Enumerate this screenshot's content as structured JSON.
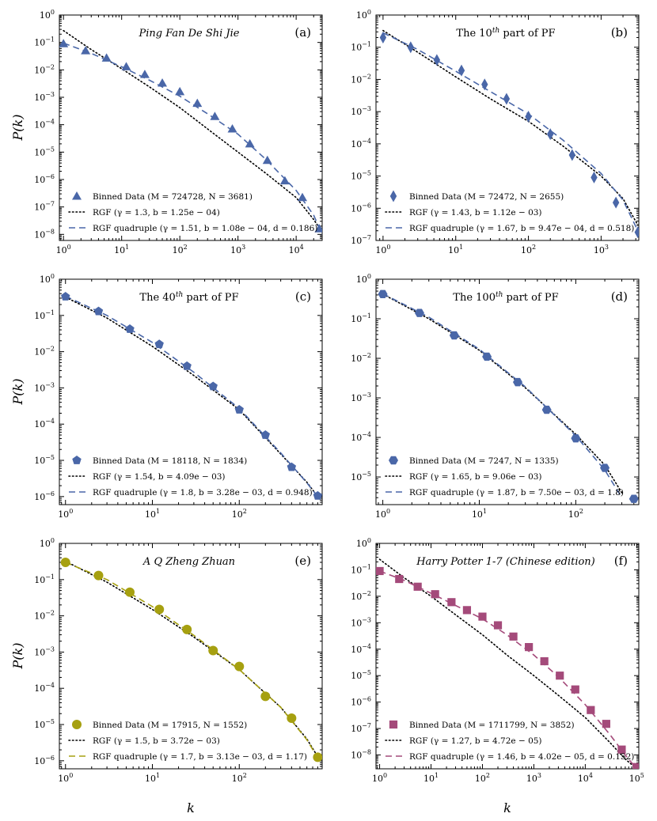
{
  "figure": {
    "x_axis_label": "k",
    "y_axis_label": "P(k)"
  },
  "colors": {
    "blue": "#4a67a8",
    "olive": "#a6a010",
    "magenta": "#a44a7a",
    "rgf_line": "#000000"
  },
  "chart_data": [
    {
      "id": "a",
      "type": "scatter",
      "scale": "log-log",
      "title": "Ping Fan De Shi Jie",
      "title_italic": true,
      "panel_letter": "(a)",
      "marker": "triangle",
      "color": "#4a67a8",
      "xlim": [
        0.85,
        28000
      ],
      "ylim": [
        6e-09,
        1
      ],
      "x_ticks": [
        1,
        10,
        100,
        1000,
        10000
      ],
      "x_tick_labels": [
        "10^0",
        "10^1",
        "10^2",
        "10^3",
        "10^4"
      ],
      "y_ticks": [
        1e-08,
        1e-07,
        1e-06,
        1e-05,
        0.0001,
        0.001,
        0.01,
        0.1,
        1
      ],
      "y_tick_labels": [
        "10^-8",
        "10^-7",
        "10^-6",
        "10^-5",
        "10^-4",
        "10^-3",
        "10^-2",
        "10^-1",
        "10^0"
      ],
      "show_ylabel": true,
      "show_xlabel": false,
      "data": {
        "x": [
          1,
          2.4,
          5.5,
          12,
          25,
          50,
          100,
          200,
          400,
          800,
          1600,
          3200,
          6400,
          12800,
          25000
        ],
        "y": [
          0.09,
          0.05,
          0.027,
          0.013,
          0.0068,
          0.0033,
          0.0016,
          0.0006,
          0.0002,
          7e-05,
          2e-05,
          5e-06,
          9e-07,
          2.2e-07,
          1.6e-08
        ]
      },
      "rgf": {
        "x": [
          1,
          3,
          10,
          30,
          100,
          300,
          1000,
          3000,
          10000,
          20000,
          28000
        ],
        "y": [
          0.27,
          0.055,
          0.011,
          0.0024,
          0.00042,
          7e-05,
          1e-05,
          1.7e-06,
          2.2e-07,
          3.5e-08,
          1.2e-08
        ]
      },
      "quad": {
        "x": [
          1,
          3,
          10,
          30,
          100,
          300,
          1000,
          3000,
          10000,
          20000,
          28000
        ],
        "y": [
          0.095,
          0.04,
          0.013,
          0.0042,
          0.0011,
          0.00025,
          4.5e-05,
          5.5e-06,
          4e-07,
          5e-08,
          1e-08
        ]
      },
      "legend": {
        "data_label": "Binned Data (M = 724728, N = 3681)",
        "rgf_label": "RGF (γ = 1.3, b = 1.25e − 04)",
        "quad_label": "RGF quadruple (γ = 1.51, b = 1.08e − 04, d = 0.186)"
      }
    },
    {
      "id": "b",
      "type": "scatter",
      "scale": "log-log",
      "title": "The 10th part of PF",
      "title_italic": false,
      "panel_letter": "(b)",
      "marker": "diamond",
      "color": "#4a67a8",
      "xlim": [
        0.8,
        3300
      ],
      "ylim": [
        1e-07,
        1
      ],
      "x_ticks": [
        1,
        10,
        100,
        1000
      ],
      "x_tick_labels": [
        "10^0",
        "10^1",
        "10^2",
        "10^3"
      ],
      "y_ticks": [
        1e-07,
        1e-06,
        1e-05,
        0.0001,
        0.001,
        0.01,
        0.1,
        1
      ],
      "y_tick_labels": [
        "10^-7",
        "10^-6",
        "10^-5",
        "10^-4",
        "10^-3",
        "10^-2",
        "10^-1",
        "10^0"
      ],
      "show_ylabel": false,
      "show_xlabel": false,
      "data": {
        "x": [
          1,
          2.4,
          5.5,
          12,
          25,
          50,
          100,
          200,
          400,
          800,
          1600,
          3200
        ],
        "y": [
          0.2,
          0.1,
          0.04,
          0.019,
          0.007,
          0.0025,
          0.0007,
          0.0002,
          4.5e-05,
          9e-06,
          1.5e-06,
          1.8e-07
        ]
      },
      "rgf": {
        "x": [
          1,
          3,
          10,
          30,
          100,
          300,
          1000,
          2000,
          3200
        ],
        "y": [
          0.33,
          0.07,
          0.012,
          0.0025,
          0.0005,
          8.5e-05,
          1e-05,
          2e-06,
          3e-07
        ]
      },
      "quad": {
        "x": [
          1,
          3,
          10,
          30,
          100,
          300,
          1000,
          2000,
          3200
        ],
        "y": [
          0.28,
          0.085,
          0.018,
          0.0042,
          0.00085,
          0.00013,
          1.2e-05,
          1.8e-06,
          2e-07
        ]
      },
      "legend": {
        "data_label": "Binned Data (M = 72472, N = 2655)",
        "rgf_label": "RGF (γ = 1.43, b = 1.12e − 03)",
        "quad_label": "RGF quadruple (γ = 1.67, b = 9.47e − 04, d = 0.518)"
      }
    },
    {
      "id": "c",
      "type": "scatter",
      "scale": "log-log",
      "title": "The 40th part of PF",
      "title_italic": false,
      "panel_letter": "(c)",
      "marker": "pentagon",
      "color": "#4a67a8",
      "xlim": [
        0.85,
        900
      ],
      "ylim": [
        6e-07,
        1
      ],
      "x_ticks": [
        1,
        10,
        100
      ],
      "x_tick_labels": [
        "10^0",
        "10^1",
        "10^2"
      ],
      "y_ticks": [
        1e-06,
        1e-05,
        0.0001,
        0.001,
        0.01,
        0.1,
        1
      ],
      "y_tick_labels": [
        "10^-6",
        "10^-5",
        "10^-4",
        "10^-3",
        "10^-2",
        "10^-1",
        "10^0"
      ],
      "show_ylabel": true,
      "show_xlabel": false,
      "data": {
        "x": [
          1,
          2.4,
          5.5,
          12,
          25,
          50,
          100,
          200,
          400,
          800
        ],
        "y": [
          0.33,
          0.13,
          0.042,
          0.016,
          0.004,
          0.0011,
          0.00025,
          5e-05,
          6.5e-06,
          1.05e-06
        ]
      },
      "rgf": {
        "x": [
          1,
          3,
          10,
          30,
          100,
          300,
          600,
          800
        ],
        "y": [
          0.32,
          0.085,
          0.014,
          0.0022,
          0.00025,
          1.5e-05,
          2.5e-06,
          1e-06
        ]
      },
      "quad": {
        "x": [
          1,
          3,
          10,
          30,
          100,
          300,
          600,
          800
        ],
        "y": [
          0.34,
          0.1,
          0.018,
          0.0027,
          0.00027,
          1.6e-05,
          2.4e-06,
          1e-06
        ]
      },
      "legend": {
        "data_label": "Binned Data (M = 18118, N = 1834)",
        "rgf_label": "RGF (γ = 1.54, b = 4.09e − 03)",
        "quad_label": "RGF quadruple (γ = 1.8, b = 3.28e − 03, d = 0.948)"
      }
    },
    {
      "id": "d",
      "type": "scatter",
      "scale": "log-log",
      "title": "The 100th part of PF",
      "title_italic": false,
      "panel_letter": "(d)",
      "marker": "hexagon",
      "color": "#4a67a8",
      "xlim": [
        0.85,
        450
      ],
      "ylim": [
        2e-06,
        1
      ],
      "x_ticks": [
        1,
        10,
        100
      ],
      "x_tick_labels": [
        "10^0",
        "10^1",
        "10^2"
      ],
      "y_ticks": [
        1e-05,
        0.0001,
        0.001,
        0.01,
        0.1,
        1
      ],
      "y_tick_labels": [
        "10^-5",
        "10^-4",
        "10^-3",
        "10^-2",
        "10^-1",
        "10^0"
      ],
      "show_ylabel": false,
      "show_xlabel": false,
      "data": {
        "x": [
          1,
          2.4,
          5.5,
          12,
          25,
          50,
          100,
          200,
          400
        ],
        "y": [
          0.42,
          0.14,
          0.038,
          0.011,
          0.0025,
          0.0005,
          9.5e-05,
          1.7e-05,
          2.8e-06
        ]
      },
      "rgf": {
        "x": [
          1,
          3,
          10,
          30,
          100,
          200,
          300
        ],
        "y": [
          0.42,
          0.1,
          0.016,
          0.0018,
          0.00012,
          2e-05,
          4e-06
        ]
      },
      "quad": {
        "x": [
          1,
          3,
          10,
          30,
          100,
          200,
          300
        ],
        "y": [
          0.43,
          0.11,
          0.017,
          0.0019,
          0.00011,
          1.5e-05,
          3e-06
        ]
      },
      "legend": {
        "data_label": "Binned Data (M = 7247, N = 1335)",
        "rgf_label": "RGF (γ = 1.65, b = 9.06e − 03)",
        "quad_label": "RGF quadruple (γ = 1.87, b = 7.50e − 03, d = 1.8)"
      }
    },
    {
      "id": "e",
      "type": "scatter",
      "scale": "log-log",
      "title": "A Q Zheng Zhuan",
      "title_italic": true,
      "panel_letter": "(e)",
      "marker": "circle",
      "color": "#a6a010",
      "xlim": [
        0.85,
        900
      ],
      "ylim": [
        6e-07,
        1
      ],
      "x_ticks": [
        1,
        10,
        100
      ],
      "x_tick_labels": [
        "10^0",
        "10^1",
        "10^2"
      ],
      "y_ticks": [
        1e-06,
        1e-05,
        0.0001,
        0.001,
        0.01,
        0.1,
        1
      ],
      "y_tick_labels": [
        "10^-6",
        "10^-5",
        "10^-4",
        "10^-3",
        "10^-2",
        "10^-1",
        "10^0"
      ],
      "show_ylabel": true,
      "show_xlabel": true,
      "data": {
        "x": [
          1,
          2.4,
          5.5,
          12,
          25,
          50,
          100,
          200,
          400,
          800
        ],
        "y": [
          0.3,
          0.13,
          0.045,
          0.015,
          0.0042,
          0.0011,
          0.0004,
          6e-05,
          1.5e-05,
          1.25e-06
        ]
      },
      "rgf": {
        "x": [
          1,
          3,
          10,
          30,
          100,
          300,
          600,
          800
        ],
        "y": [
          0.32,
          0.085,
          0.015,
          0.0026,
          0.00033,
          3e-05,
          4e-06,
          1.3e-06
        ]
      },
      "quad": {
        "x": [
          1,
          3,
          10,
          30,
          100,
          300,
          600,
          800
        ],
        "y": [
          0.3,
          0.1,
          0.018,
          0.0029,
          0.00033,
          3e-05,
          3.8e-06,
          1.2e-06
        ]
      },
      "legend": {
        "data_label": "Binned Data (M = 17915, N = 1552)",
        "rgf_label": "RGF (γ = 1.5, b = 3.72e − 03)",
        "quad_label": "RGF quadruple (γ = 1.7, b = 3.13e − 03, d = 1.17)"
      }
    },
    {
      "id": "f",
      "type": "scatter",
      "scale": "log-log",
      "title": "Harry Potter 1-7 (Chinese edition)",
      "title_italic": true,
      "panel_letter": "(f)",
      "marker": "square",
      "color": "#a44a7a",
      "xlim": [
        0.85,
        110000
      ],
      "ylim": [
        3e-09,
        1
      ],
      "x_ticks": [
        1,
        10,
        100,
        1000,
        10000,
        100000
      ],
      "x_tick_labels": [
        "10^0",
        "10^1",
        "10^2",
        "10^3",
        "10^4",
        "10^5"
      ],
      "y_ticks": [
        1e-08,
        1e-07,
        1e-06,
        1e-05,
        0.0001,
        0.001,
        0.01,
        0.1,
        1
      ],
      "y_tick_labels": [
        "10^-8",
        "10^-7",
        "10^-6",
        "10^-5",
        "10^-4",
        "10^-3",
        "10^-2",
        "10^-1",
        "10^0"
      ],
      "show_ylabel": false,
      "show_xlabel": true,
      "data": {
        "x": [
          1,
          2.4,
          5.5,
          12,
          25,
          50,
          100,
          200,
          400,
          800,
          1600,
          3200,
          6400,
          12800,
          25600,
          51200,
          100000
        ],
        "y": [
          0.09,
          0.045,
          0.023,
          0.012,
          0.006,
          0.003,
          0.0017,
          0.0008,
          0.0003,
          0.00012,
          3.5e-05,
          1e-05,
          3e-06,
          5e-07,
          1.5e-07,
          1.6e-08,
          3.5e-09
        ]
      },
      "rgf": {
        "x": [
          1,
          3,
          10,
          30,
          100,
          300,
          1000,
          3000,
          10000,
          30000,
          60000,
          100000
        ],
        "y": [
          0.25,
          0.05,
          0.01,
          0.002,
          0.00035,
          6e-05,
          1e-05,
          1.8e-06,
          2.6e-07,
          3e-08,
          7e-09,
          3e-09
        ]
      },
      "quad": {
        "x": [
          1,
          3,
          10,
          30,
          100,
          300,
          1000,
          3000,
          10000,
          30000,
          60000,
          100000
        ],
        "y": [
          0.09,
          0.04,
          0.013,
          0.0045,
          0.0014,
          0.00035,
          6e-05,
          9e-06,
          8e-07,
          6e-08,
          1e-08,
          3e-09
        ]
      },
      "legend": {
        "data_label": "Binned Data (M = 1711799, N = 3852)",
        "rgf_label": "RGF (γ = 1.27, b = 4.72e − 05)",
        "quad_label": "RGF quadruple (γ = 1.46, b = 4.02e − 05, d = 0.152)"
      }
    }
  ]
}
